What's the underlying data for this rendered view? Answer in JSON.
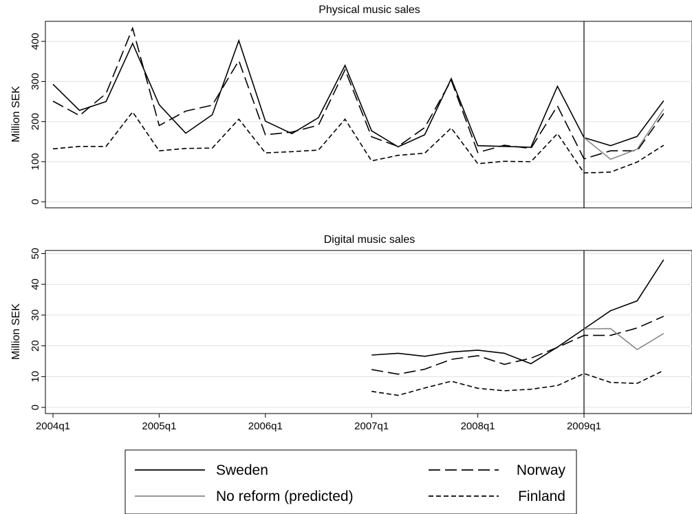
{
  "chart_data": [
    {
      "type": "line",
      "title": "Physical music sales",
      "xlabel": "",
      "ylabel": "Million SEK",
      "ylim": [
        -15,
        450
      ],
      "yticks": [
        0,
        100,
        200,
        300,
        400
      ],
      "grid": true,
      "vline": "2009q1",
      "series": [
        {
          "key": "sweden",
          "x": [
            "2004q1",
            "2004q2",
            "2004q3",
            "2004q4",
            "2005q1",
            "2005q2",
            "2005q3",
            "2005q4",
            "2006q1",
            "2006q2",
            "2006q3",
            "2006q4",
            "2007q1",
            "2007q2",
            "2007q3",
            "2007q4",
            "2008q1",
            "2008q2",
            "2008q3",
            "2008q4",
            "2009q1",
            "2009q2",
            "2009q3",
            "2009q4"
          ],
          "values": [
            293,
            228,
            250,
            395,
            242,
            171,
            217,
            402,
            201,
            170,
            210,
            340,
            177,
            137,
            167,
            307,
            140,
            138,
            136,
            288,
            160,
            140,
            163,
            252
          ]
        },
        {
          "key": "norway",
          "x": [
            "2004q1",
            "2004q2",
            "2004q3",
            "2004q4",
            "2005q1",
            "2005q2",
            "2005q3",
            "2005q4",
            "2006q1",
            "2006q2",
            "2006q3",
            "2006q4",
            "2007q1",
            "2007q2",
            "2007q3",
            "2007q4",
            "2008q1",
            "2008q2",
            "2008q3",
            "2008q4",
            "2009q1",
            "2009q2",
            "2009q3",
            "2009q4"
          ],
          "values": [
            251,
            215,
            270,
            433,
            190,
            226,
            241,
            352,
            167,
            174,
            191,
            329,
            162,
            138,
            185,
            303,
            123,
            141,
            133,
            239,
            107,
            127,
            127,
            220
          ]
        },
        {
          "key": "finland",
          "x": [
            "2004q1",
            "2004q2",
            "2004q3",
            "2004q4",
            "2005q1",
            "2005q2",
            "2005q3",
            "2005q4",
            "2006q1",
            "2006q2",
            "2006q3",
            "2006q4",
            "2007q1",
            "2007q2",
            "2007q3",
            "2007q4",
            "2008q1",
            "2008q2",
            "2008q3",
            "2008q4",
            "2009q1",
            "2009q2",
            "2009q3",
            "2009q4"
          ],
          "values": [
            132,
            138,
            138,
            224,
            127,
            133,
            134,
            206,
            122,
            125,
            129,
            206,
            102,
            116,
            121,
            184,
            95,
            101,
            100,
            170,
            72,
            74,
            99,
            141
          ]
        },
        {
          "key": "noreform",
          "x": [
            "2009q1",
            "2009q2",
            "2009q3",
            "2009q4"
          ],
          "values": [
            160,
            106,
            131,
            231
          ]
        }
      ]
    },
    {
      "type": "line",
      "title": "Digital music sales",
      "xlabel": "",
      "ylabel": "Million SEK",
      "ylim": [
        -2,
        51
      ],
      "yticks": [
        0,
        10,
        20,
        30,
        40,
        50
      ],
      "grid": true,
      "vline": "2009q1",
      "series": [
        {
          "key": "sweden",
          "x": [
            "2007q1",
            "2007q2",
            "2007q3",
            "2007q4",
            "2008q1",
            "2008q2",
            "2008q3",
            "2008q4",
            "2009q1",
            "2009q2",
            "2009q3",
            "2009q4"
          ],
          "values": [
            17,
            17.6,
            16.6,
            18,
            18.6,
            17.6,
            14.2,
            19.6,
            25.5,
            31.4,
            34.6,
            48
          ]
        },
        {
          "key": "norway",
          "x": [
            "2007q1",
            "2007q2",
            "2007q3",
            "2007q4",
            "2008q1",
            "2008q2",
            "2008q3",
            "2008q4",
            "2009q1",
            "2009q2",
            "2009q3",
            "2009q4"
          ],
          "values": [
            12.3,
            10.8,
            12.4,
            15.6,
            16.8,
            14,
            16,
            19.5,
            23.4,
            23.4,
            25.8,
            29.6
          ]
        },
        {
          "key": "finland",
          "x": [
            "2007q1",
            "2007q2",
            "2007q3",
            "2007q4",
            "2008q1",
            "2008q2",
            "2008q3",
            "2008q4",
            "2009q1",
            "2009q2",
            "2009q3",
            "2009q4"
          ],
          "values": [
            5.2,
            3.9,
            6.3,
            8.5,
            6.2,
            5.4,
            5.9,
            7.1,
            11,
            8.1,
            7.8,
            12
          ]
        },
        {
          "key": "noreform",
          "x": [
            "2009q1",
            "2009q2",
            "2009q3",
            "2009q4"
          ],
          "values": [
            25.5,
            25.6,
            18.8,
            24
          ]
        }
      ]
    }
  ],
  "x_axis": {
    "ticks": [
      "2004q1",
      "2005q1",
      "2006q1",
      "2007q1",
      "2008q1",
      "2009q1"
    ]
  },
  "legend": {
    "placement": "bottom",
    "items": [
      {
        "key": "sweden",
        "label": "Sweden",
        "color": "#000000",
        "dash": "solid"
      },
      {
        "key": "norway",
        "label": "Norway",
        "color": "#000000",
        "dash": "long-dash"
      },
      {
        "key": "noreform",
        "label": "No reform (predicted)",
        "color": "#888888",
        "dash": "solid"
      },
      {
        "key": "finland",
        "label": "Finland",
        "color": "#000000",
        "dash": "short-dash"
      }
    ]
  }
}
